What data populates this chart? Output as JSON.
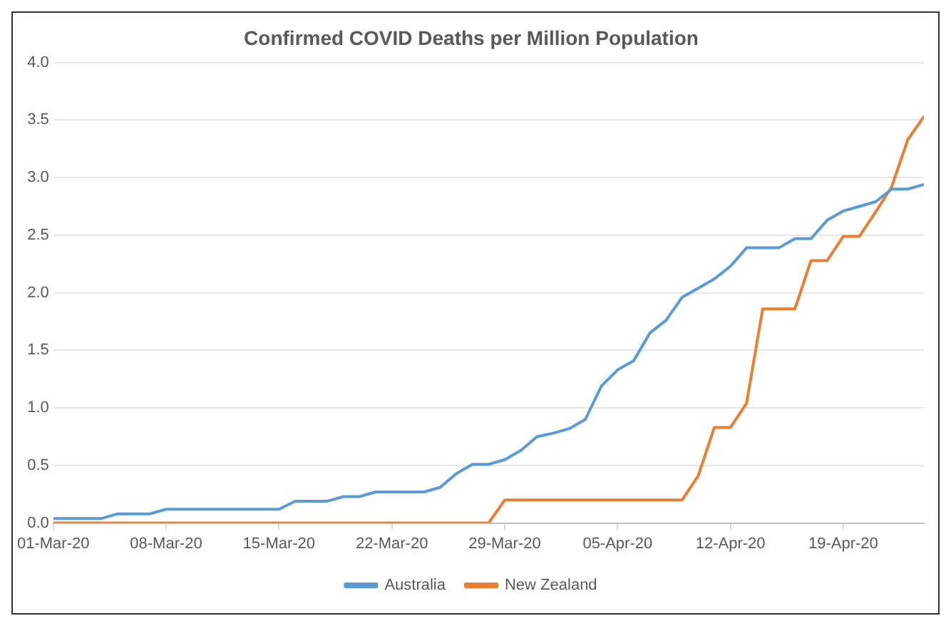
{
  "chart_data": {
    "type": "line",
    "title": "Confirmed COVID Deaths per Million Population",
    "x": [
      "--03-01",
      "--03-02",
      "--03-03",
      "--03-04",
      "--03-05",
      "--03-06",
      "--03-07",
      "--03-08",
      "--03-09",
      "--03-10",
      "--03-11",
      "--03-12",
      "--03-13",
      "--03-14",
      "--03-15",
      "--03-16",
      "--03-17",
      "--03-18",
      "--03-19",
      "--03-20",
      "--03-21",
      "--03-22",
      "--03-23",
      "--03-24",
      "--03-25",
      "--03-26",
      "--03-27",
      "--03-28",
      "--03-29",
      "--03-30",
      "--03-31",
      "--04-01",
      "--04-02",
      "--04-03",
      "--04-04",
      "--04-05",
      "--04-06",
      "--04-07",
      "--04-08",
      "--04-09",
      "--04-10",
      "--04-11",
      "--04-12",
      "--04-13",
      "--04-14",
      "--04-15",
      "--04-16",
      "--04-17",
      "--04-18",
      "--04-19",
      "--04-20",
      "--04-21",
      "--04-22",
      "--04-23",
      "--04-24"
    ],
    "series": [
      {
        "name": "Australia",
        "color": "#5b9bd5",
        "values": [
          0.04,
          0.04,
          0.04,
          0.04,
          0.08,
          0.08,
          0.08,
          0.12,
          0.12,
          0.12,
          0.12,
          0.12,
          0.12,
          0.12,
          0.12,
          0.19,
          0.19,
          0.19,
          0.23,
          0.23,
          0.27,
          0.27,
          0.27,
          0.27,
          0.31,
          0.43,
          0.51,
          0.51,
          0.55,
          0.63,
          0.75,
          0.78,
          0.82,
          0.9,
          1.19,
          1.33,
          1.41,
          1.65,
          1.76,
          1.96,
          2.04,
          2.12,
          2.23,
          2.39,
          2.39,
          2.39,
          2.47,
          2.47,
          2.63,
          2.71,
          2.75,
          2.79,
          2.9,
          2.9,
          2.94
        ]
      },
      {
        "name": "New Zealand",
        "color": "#ed7d31",
        "values": [
          0,
          0,
          0,
          0,
          0,
          0,
          0,
          0,
          0,
          0,
          0,
          0,
          0,
          0,
          0,
          0,
          0,
          0,
          0,
          0,
          0,
          0,
          0,
          0,
          0,
          0,
          0,
          0,
          0.2,
          0.2,
          0.2,
          0.2,
          0.2,
          0.2,
          0.2,
          0.2,
          0.2,
          0.2,
          0.2,
          0.2,
          0.41,
          0.83,
          0.83,
          1.04,
          1.86,
          1.86,
          1.86,
          2.28,
          2.28,
          2.49,
          2.49,
          2.7,
          2.92,
          3.33,
          3.53
        ]
      }
    ],
    "xlim": [
      "--03-01",
      "--04-24"
    ],
    "xticks": [
      {
        "value": "--03-01",
        "label": "01-Mar-20"
      },
      {
        "value": "--03-08",
        "label": "08-Mar-20"
      },
      {
        "value": "--03-15",
        "label": "15-Mar-20"
      },
      {
        "value": "--03-22",
        "label": "22-Mar-20"
      },
      {
        "value": "--03-29",
        "label": "29-Mar-20"
      },
      {
        "value": "--04-05",
        "label": "05-Apr-20"
      },
      {
        "value": "--04-12",
        "label": "12-Apr-20"
      },
      {
        "value": "--04-19",
        "label": "19-Apr-20"
      }
    ],
    "ylim": [
      0,
      4
    ],
    "yticks": [
      {
        "value": 0,
        "label": "0.0"
      },
      {
        "value": 0.5,
        "label": "0.5"
      },
      {
        "value": 1,
        "label": "1.0"
      },
      {
        "value": 1.5,
        "label": "1.5"
      },
      {
        "value": 2,
        "label": "2.0"
      },
      {
        "value": 2.5,
        "label": "2.5"
      },
      {
        "value": 3,
        "label": "3.0"
      },
      {
        "value": 3.5,
        "label": "3.5"
      },
      {
        "value": 4,
        "label": "4.0"
      }
    ],
    "grid": "y",
    "legend": "bottom",
    "marker": "none",
    "line_style": "solid"
  }
}
